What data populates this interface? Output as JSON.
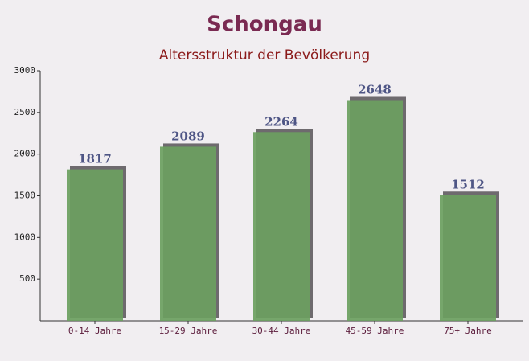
{
  "chart_data": {
    "type": "bar",
    "title": "Schongau",
    "subtitle": "Altersstruktur der Bevölkerung",
    "categories": [
      "0-14 Jahre",
      "15-29 Jahre",
      "30-44 Jahre",
      "45-59 Jahre",
      "75+ Jahre"
    ],
    "values": [
      1817,
      2089,
      2264,
      2648,
      1512
    ],
    "color": "#6b9f5f",
    "ylim": [
      0,
      3000
    ],
    "yticks": [
      500,
      1000,
      1500,
      2000,
      2500,
      3000
    ]
  }
}
